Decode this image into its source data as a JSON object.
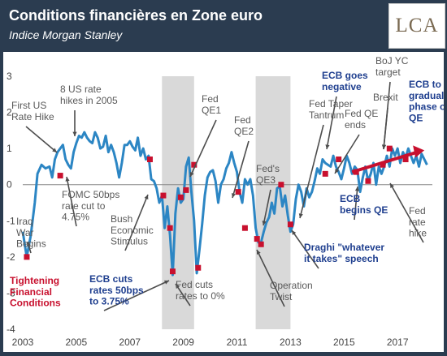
{
  "header": {
    "title": "Conditions financières en Zone euro",
    "subtitle": "Indice Morgan Stanley",
    "logo_text": "LCA"
  },
  "colors": {
    "background": "#2b3c50",
    "line": "#2c86c4",
    "marker": "#c8102e",
    "shade": "#d9d9d9",
    "annotation_blue": "#1f3f8f",
    "annotation_red": "#c8102e",
    "annotation_gray": "#595959"
  },
  "chart_data": {
    "type": "line",
    "title": "Conditions financières en Zone euro",
    "subtitle": "Indice Morgan Stanley",
    "xlabel": "",
    "ylabel": "",
    "xlim": [
      2003,
      2018.3
    ],
    "ylim": [
      -4,
      3
    ],
    "x_ticks": [
      2003,
      2005,
      2007,
      2009,
      2011,
      2013,
      2015,
      2017
    ],
    "y_ticks": [
      3,
      2,
      1,
      0,
      -1,
      -2,
      -3,
      -4
    ],
    "shaded_periods": [
      [
        2008.2,
        2009.4
      ],
      [
        2011.7,
        2013.0
      ]
    ],
    "series": [
      {
        "x": [
          2003.0,
          2003.15,
          2003.3,
          2003.45,
          2003.55,
          2003.7,
          2003.85,
          2004.0,
          2004.1,
          2004.2,
          2004.3,
          2004.4,
          2004.5,
          2004.6,
          2004.7,
          2004.8,
          2004.9,
          2005.0,
          2005.1,
          2005.2,
          2005.3,
          2005.4,
          2005.5,
          2005.6,
          2005.7,
          2005.8,
          2005.9,
          2006.0,
          2006.1,
          2006.2,
          2006.3,
          2006.4,
          2006.5,
          2006.6,
          2006.7,
          2006.8,
          2006.9,
          2007.0,
          2007.1,
          2007.2,
          2007.3,
          2007.4,
          2007.5,
          2007.6,
          2007.7,
          2007.8,
          2007.9,
          2008.0,
          2008.1,
          2008.2,
          2008.3,
          2008.4,
          2008.5,
          2008.6,
          2008.7,
          2008.8,
          2008.9,
          2009.0,
          2009.1,
          2009.2,
          2009.3,
          2009.4,
          2009.5,
          2009.6,
          2009.7,
          2009.8,
          2009.9,
          2010.0,
          2010.1,
          2010.2,
          2010.3,
          2010.4,
          2010.5,
          2010.6,
          2010.7,
          2010.8,
          2010.9,
          2011.0,
          2011.1,
          2011.2,
          2011.3,
          2011.4,
          2011.5,
          2011.6,
          2011.7,
          2011.8,
          2011.9,
          2012.0,
          2012.1,
          2012.2,
          2012.3,
          2012.4,
          2012.5,
          2012.6,
          2012.7,
          2012.8,
          2012.9,
          2013.0,
          2013.1,
          2013.2,
          2013.3,
          2013.4,
          2013.5,
          2013.6,
          2013.7,
          2013.8,
          2013.9,
          2014.0,
          2014.1,
          2014.2,
          2014.3,
          2014.4,
          2014.5,
          2014.6,
          2014.7,
          2014.8,
          2014.9,
          2015.0,
          2015.1,
          2015.2,
          2015.3,
          2015.4,
          2015.5,
          2015.6,
          2015.7,
          2015.8,
          2015.9,
          2016.0,
          2016.1,
          2016.2,
          2016.3,
          2016.4,
          2016.5,
          2016.6,
          2016.7,
          2016.8,
          2016.9,
          2017.0,
          2017.1,
          2017.2,
          2017.3,
          2017.4,
          2017.5,
          2017.6,
          2017.7,
          2017.8,
          2017.9,
          2018.0,
          2018.1
        ],
        "values": [
          -1.3,
          -2.0,
          -1.4,
          -0.5,
          0.3,
          0.55,
          0.45,
          0.5,
          0.2,
          0.7,
          0.9,
          1.0,
          1.1,
          0.7,
          0.55,
          0.45,
          0.9,
          1.15,
          1.35,
          1.3,
          1.45,
          1.3,
          1.2,
          1.15,
          1.45,
          1.3,
          1.0,
          1.05,
          1.35,
          0.9,
          1.1,
          0.9,
          0.6,
          0.2,
          0.6,
          1.1,
          1.1,
          1.2,
          1.05,
          0.95,
          1.3,
          0.8,
          1.0,
          0.7,
          0.8,
          0.15,
          0.1,
          -0.1,
          -0.5,
          -0.3,
          -1.2,
          -0.6,
          -1.4,
          -2.5,
          -0.8,
          -0.1,
          -0.5,
          -0.4,
          0.5,
          0.75,
          -0.2,
          -1.0,
          -2.45,
          -1.8,
          -1.1,
          -0.3,
          0.2,
          0.35,
          0.4,
          0.1,
          -0.5,
          0.0,
          0.15,
          0.45,
          0.6,
          0.9,
          0.6,
          0.35,
          -0.2,
          -0.5,
          0.15,
          0.0,
          0.15,
          -0.3,
          -1.2,
          -1.6,
          -1.6,
          -1.3,
          -1.05,
          -0.9,
          -0.5,
          -0.8,
          -0.1,
          -0.05,
          -0.6,
          -0.3,
          -0.85,
          -1.3,
          -1.1,
          -0.4,
          0.0,
          -0.2,
          -0.6,
          -0.1,
          -0.35,
          -0.2,
          0.1,
          0.45,
          0.3,
          0.7,
          0.6,
          0.55,
          0.5,
          0.8,
          0.5,
          0.35,
          0.15,
          0.45,
          0.8,
          0.6,
          0.3,
          0.5,
          0.4,
          -0.2,
          0.2,
          0.5,
          0.1,
          0.3,
          0.6,
          0.0,
          0.5,
          0.3,
          0.5,
          0.8,
          0.5,
          1.0,
          0.8,
          1.0,
          0.6,
          0.9,
          0.75,
          1.0,
          0.8,
          0.6,
          0.8,
          0.5,
          0.85,
          0.7,
          0.55
        ]
      }
    ],
    "markers": [
      {
        "x": 2003.15,
        "y": -2.0
      },
      {
        "x": 2004.4,
        "y": 0.25
      },
      {
        "x": 2007.75,
        "y": 0.7
      },
      {
        "x": 2008.25,
        "y": -0.3
      },
      {
        "x": 2008.5,
        "y": -1.2
      },
      {
        "x": 2008.9,
        "y": -0.35
      },
      {
        "x": 2008.6,
        "y": -2.4
      },
      {
        "x": 2009.1,
        "y": -0.15
      },
      {
        "x": 2009.4,
        "y": 0.55
      },
      {
        "x": 2009.55,
        "y": -2.3
      },
      {
        "x": 2011.05,
        "y": -0.2
      },
      {
        "x": 2011.3,
        "y": -1.2
      },
      {
        "x": 2011.75,
        "y": -1.5
      },
      {
        "x": 2011.9,
        "y": -1.65
      },
      {
        "x": 2012.65,
        "y": 0.0
      },
      {
        "x": 2013.0,
        "y": -1.1
      },
      {
        "x": 2014.3,
        "y": 0.3
      },
      {
        "x": 2014.8,
        "y": 0.7
      },
      {
        "x": 2015.45,
        "y": 0.35
      },
      {
        "x": 2015.9,
        "y": 0.1
      },
      {
        "x": 2016.45,
        "y": 0.55
      },
      {
        "x": 2016.7,
        "y": 1.0
      },
      {
        "x": 2017.3,
        "y": 0.7
      }
    ],
    "trend_arrow": {
      "x1": 2015.3,
      "y1": 0.35,
      "x2": 2018.0,
      "y2": 0.95
    },
    "annotations": [
      {
        "text": [
          "First US",
          "Rate Hike"
        ],
        "style": "gray"
      },
      {
        "text": [
          "8 US rate",
          "hikes in 2005"
        ],
        "style": "gray"
      },
      {
        "text": [
          "FOMC 50bps",
          "rate cut to",
          "4.75%"
        ],
        "style": "gray"
      },
      {
        "text": [
          "Bush",
          "Economic",
          "Stimulus"
        ],
        "style": "gray"
      },
      {
        "text": [
          "Iraq",
          "War",
          "Begins"
        ],
        "style": "gray"
      },
      {
        "text": [
          "Tightening",
          "Financial",
          "Conditions"
        ],
        "style": "red"
      },
      {
        "text": [
          "ECB cuts",
          "rates 50bps",
          "to 3.75%"
        ],
        "style": "blue"
      },
      {
        "text": [
          "Fed cuts",
          "rates to 0%"
        ],
        "style": "gray"
      },
      {
        "text": [
          "Fed",
          "QE1"
        ],
        "style": "gray"
      },
      {
        "text": [
          "Fed",
          "QE2"
        ],
        "style": "gray"
      },
      {
        "text": [
          "Fed's",
          "QE3"
        ],
        "style": "gray"
      },
      {
        "text": [
          "Operation",
          "Twist"
        ],
        "style": "gray"
      },
      {
        "text": [
          "Fed Taper",
          "Tantrum"
        ],
        "style": "gray"
      },
      {
        "text": [
          "ECB goes",
          "negative"
        ],
        "style": "blue"
      },
      {
        "text": [
          "Draghi \"whatever",
          "it takes\" speech"
        ],
        "style": "blue"
      },
      {
        "text": [
          "Fed QE",
          "ends"
        ],
        "style": "gray"
      },
      {
        "text": [
          "BoJ YC",
          "target"
        ],
        "style": "gray"
      },
      {
        "text": [
          "Brexit"
        ],
        "style": "gray"
      },
      {
        "text": [
          "ECB to",
          "gradually",
          "phase out",
          "QE"
        ],
        "style": "blue"
      },
      {
        "text": [
          "ECB",
          "begins QE"
        ],
        "style": "blue"
      },
      {
        "text": [
          "Fed",
          "rate",
          "hike"
        ],
        "style": "gray"
      }
    ]
  }
}
